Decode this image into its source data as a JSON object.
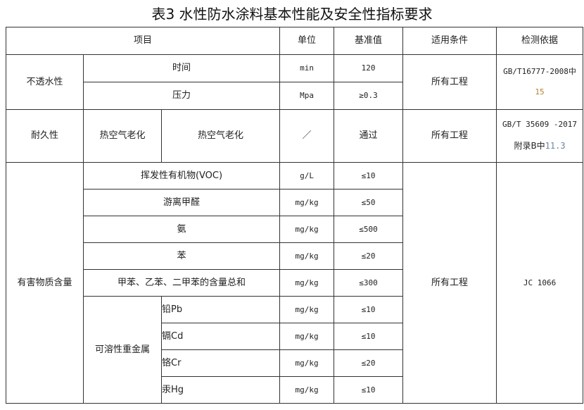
{
  "title": "表3 水性防水涂料基本性能及安全性指标要求",
  "header": {
    "item": "项目",
    "unit": "单位",
    "value": "基准值",
    "condition": "适用条件",
    "basis": "检测依据"
  },
  "impermeability": {
    "label": "不透水性",
    "rows": [
      {
        "name": "时间",
        "unit": "min",
        "value": "120"
      },
      {
        "name": "压力",
        "unit": "Mpa",
        "value": "≥0.3"
      }
    ],
    "condition": "所有工程",
    "basis_a": "GB/T16777-2008中",
    "basis_b": "15"
  },
  "durability": {
    "label": "耐久性",
    "sub": "热空气老化",
    "name": "热空气老化",
    "unit": "／",
    "value": "通过",
    "condition": "所有工程",
    "basis_a": "GB/T 35609 -2017",
    "basis_b": "附录B中",
    "basis_c": "11.3"
  },
  "harmful": {
    "label": "有害物质含量",
    "condition": "所有工程",
    "basis": "JC 1066",
    "rows": [
      {
        "name": "挥发性有机物(VOC)",
        "unit": "g/L",
        "value": "≤10"
      },
      {
        "name": "游离甲醛",
        "unit": "mg/kg",
        "value": "≤50"
      },
      {
        "name": "氨",
        "unit": "mg/kg",
        "value": "≤500"
      },
      {
        "name": "苯",
        "unit": "mg/kg",
        "value": "≤20"
      },
      {
        "name": "甲苯、乙苯、二甲苯的含量总和",
        "unit": "mg/kg",
        "value": "≤300"
      }
    ],
    "metals_label": "可溶性重金属",
    "metals": [
      {
        "name": "铅Pb",
        "unit": "mg/kg",
        "value": "≤10"
      },
      {
        "name": "镉Cd",
        "unit": "mg/kg",
        "value": "≤10"
      },
      {
        "name": "铬Cr",
        "unit": "mg/kg",
        "value": "≤20"
      },
      {
        "name": "汞Hg",
        "unit": "mg/kg",
        "value": "≤10"
      }
    ]
  }
}
